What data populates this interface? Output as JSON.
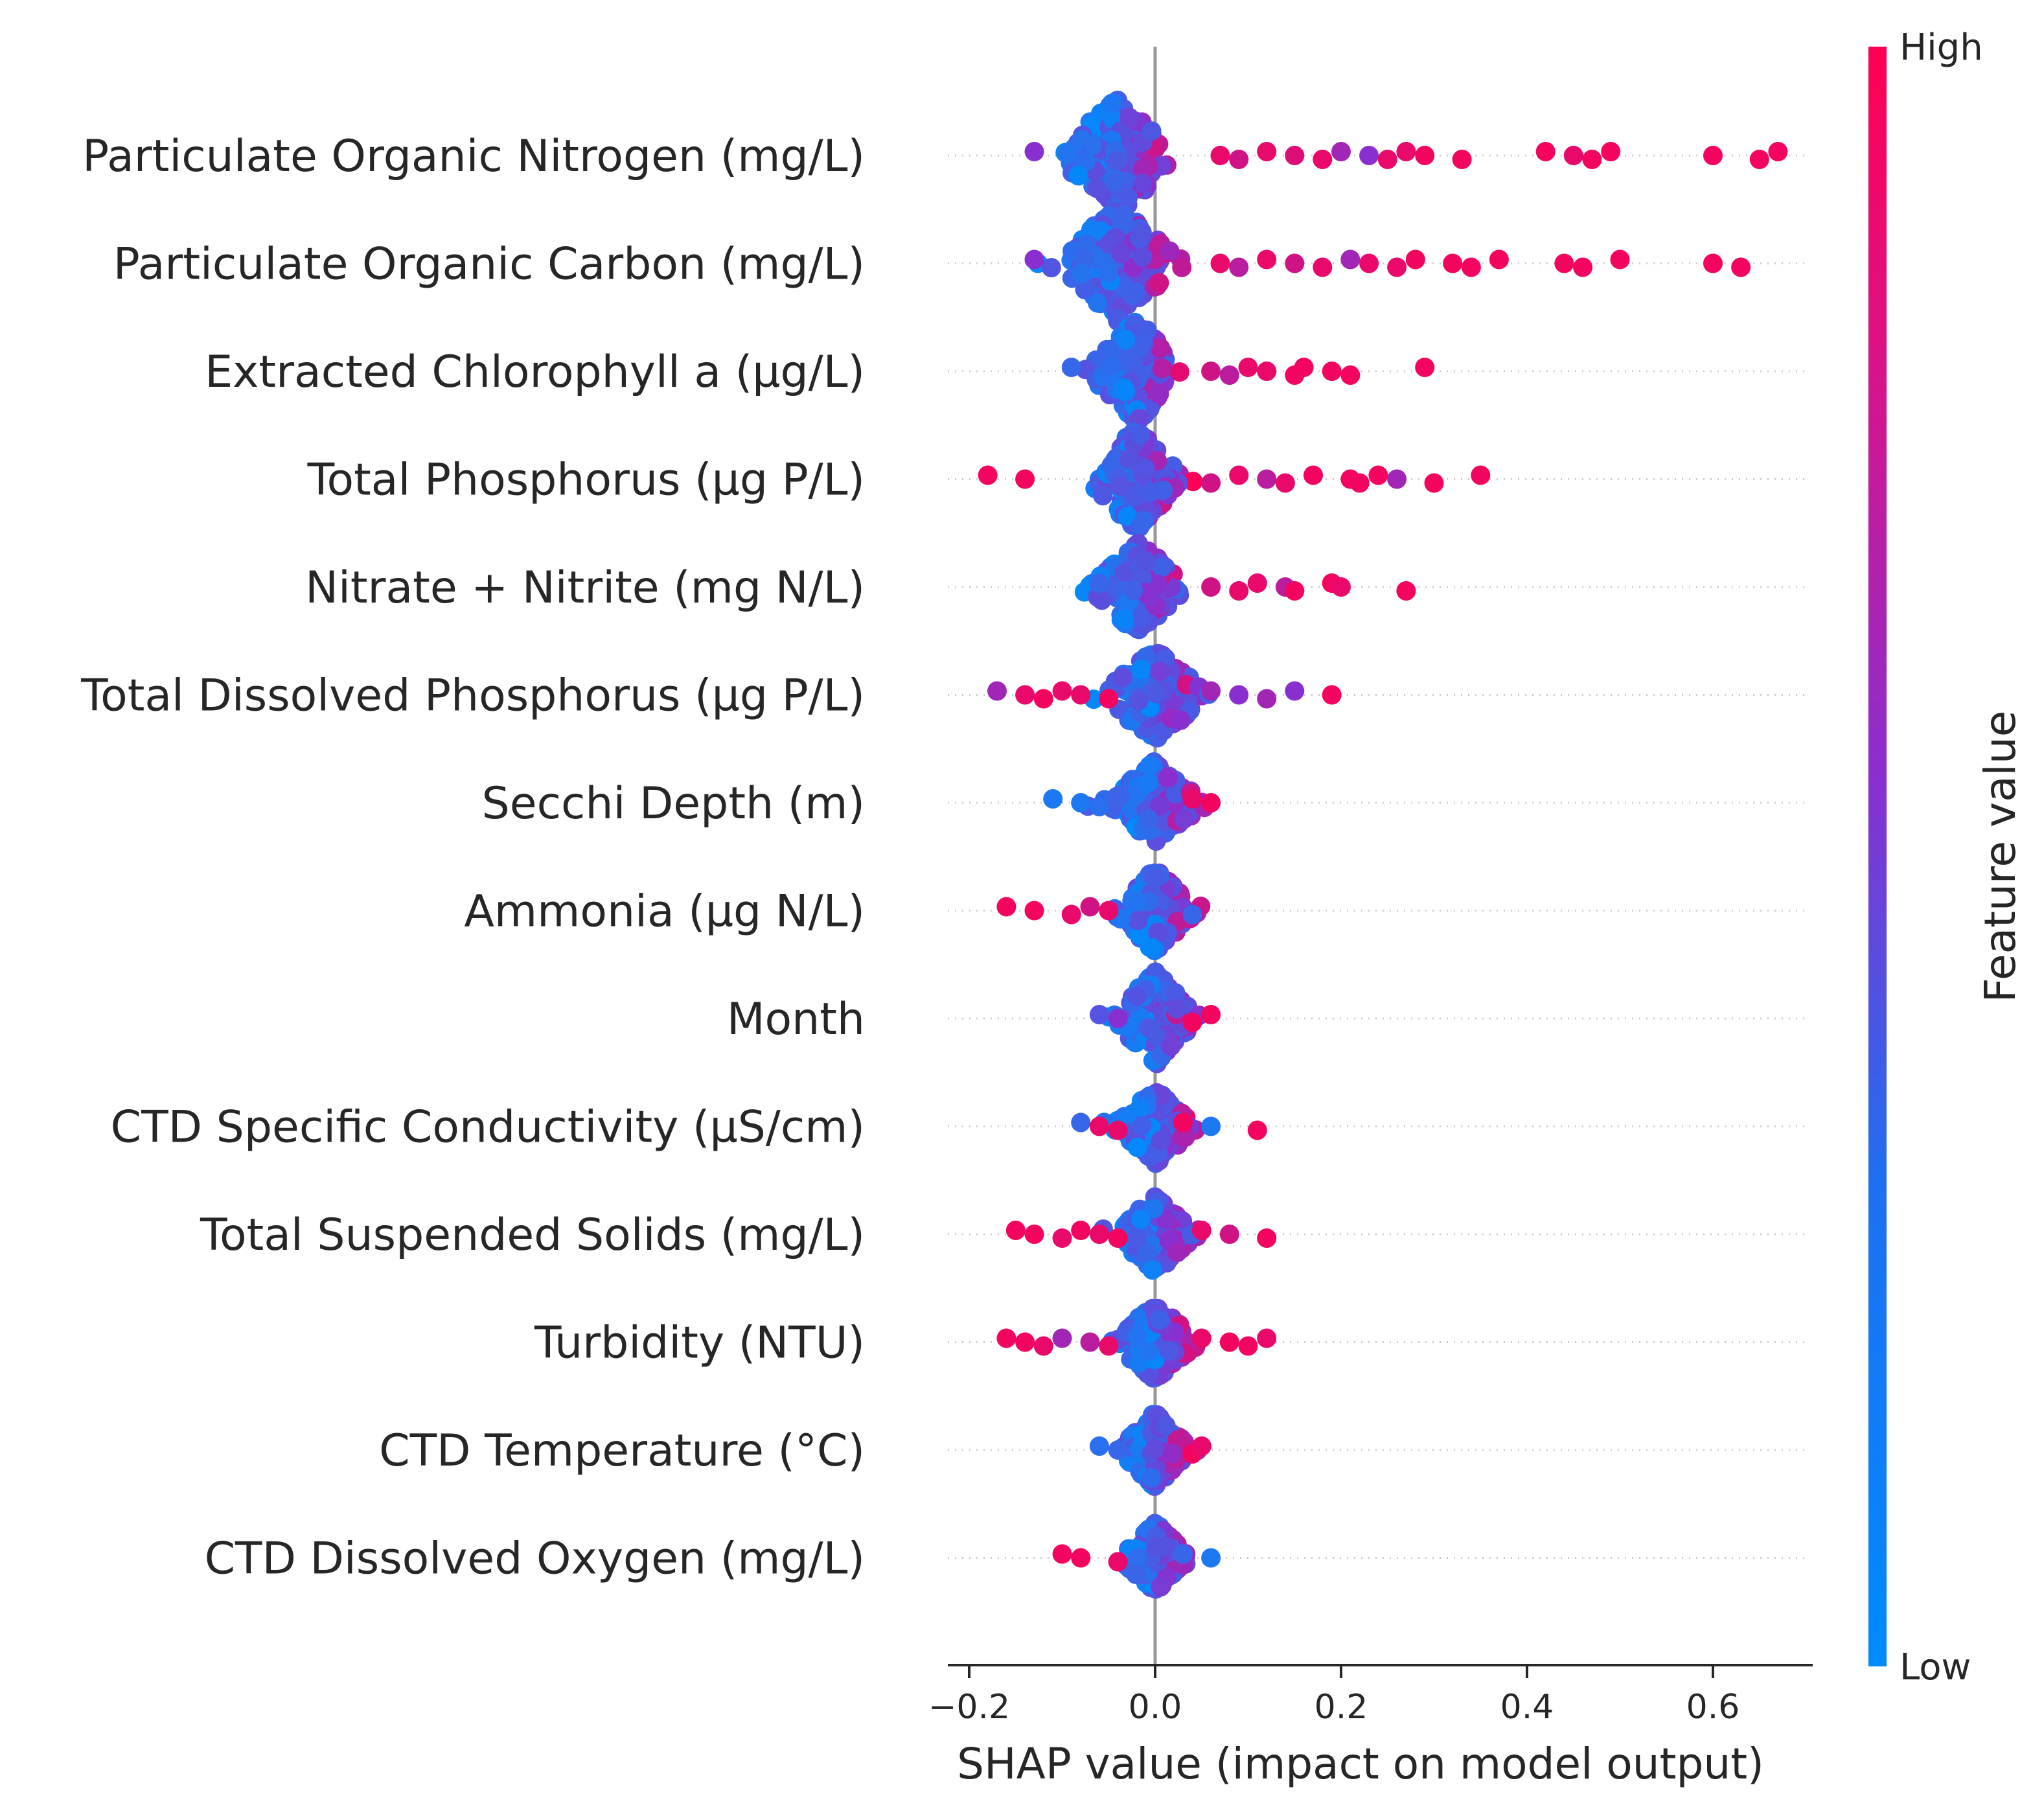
{
  "chart_data": {
    "type": "scatter",
    "subtype": "shap-beeswarm",
    "xlabel": "SHAP value (impact on model output)",
    "xlim": [
      -0.225,
      0.71
    ],
    "x_ticks": [
      -0.2,
      0.0,
      0.2,
      0.4,
      0.6
    ],
    "x_tick_labels": [
      "−0.2",
      "0.0",
      "0.2",
      "0.4",
      "0.6"
    ],
    "colorbar": {
      "label": "Feature value",
      "high_label": "High",
      "low_label": "Low",
      "low_color": "#008bfb",
      "high_color": "#ff0052"
    },
    "features": [
      {
        "name": "Particulate Organic Nitrogen (mg/L)",
        "spread": 0.045,
        "center": -0.04,
        "width": 90,
        "outliers": [
          [
            -0.13,
            0.5
          ],
          [
            0.07,
            0.9
          ],
          [
            0.09,
            0.8
          ],
          [
            0.12,
            0.9
          ],
          [
            0.15,
            0.85
          ],
          [
            0.18,
            0.9
          ],
          [
            0.2,
            0.6
          ],
          [
            0.23,
            0.5
          ],
          [
            0.25,
            0.9
          ],
          [
            0.27,
            0.9
          ],
          [
            0.29,
            0.95
          ],
          [
            0.33,
            0.95
          ],
          [
            0.42,
            0.95
          ],
          [
            0.45,
            0.9
          ],
          [
            0.47,
            0.95
          ],
          [
            0.49,
            0.95
          ],
          [
            0.6,
            0.95
          ],
          [
            0.65,
            0.95
          ],
          [
            0.67,
            0.95
          ]
        ]
      },
      {
        "name": "Particulate Organic Carbon (mg/L)",
        "spread": 0.045,
        "center": -0.04,
        "width": 90,
        "outliers": [
          [
            -0.13,
            0.5
          ],
          [
            0.07,
            0.9
          ],
          [
            0.09,
            0.7
          ],
          [
            0.12,
            0.9
          ],
          [
            0.15,
            0.8
          ],
          [
            0.18,
            0.9
          ],
          [
            0.21,
            0.6
          ],
          [
            0.23,
            0.9
          ],
          [
            0.26,
            0.9
          ],
          [
            0.28,
            0.95
          ],
          [
            0.32,
            0.95
          ],
          [
            0.34,
            0.95
          ],
          [
            0.37,
            0.95
          ],
          [
            0.44,
            0.95
          ],
          [
            0.46,
            0.95
          ],
          [
            0.5,
            0.95
          ],
          [
            0.6,
            0.95
          ],
          [
            0.63,
            0.95
          ]
        ]
      },
      {
        "name": "Extracted Chlorophyll a (µg/L)",
        "spread": 0.035,
        "center": -0.02,
        "width": 80,
        "outliers": [
          [
            -0.09,
            0.2
          ],
          [
            0.06,
            0.8
          ],
          [
            0.08,
            0.7
          ],
          [
            0.1,
            0.9
          ],
          [
            0.12,
            0.9
          ],
          [
            0.15,
            0.95
          ],
          [
            0.16,
            0.95
          ],
          [
            0.19,
            0.95
          ],
          [
            0.21,
            0.95
          ],
          [
            0.29,
            0.95
          ]
        ]
      },
      {
        "name": "Total Phosphorus (µg P/L)",
        "spread": 0.035,
        "center": -0.02,
        "width": 80,
        "outliers": [
          [
            -0.18,
            0.95
          ],
          [
            -0.14,
            0.95
          ],
          [
            0.06,
            0.8
          ],
          [
            0.09,
            0.9
          ],
          [
            0.12,
            0.7
          ],
          [
            0.14,
            0.9
          ],
          [
            0.17,
            0.95
          ],
          [
            0.21,
            0.95
          ],
          [
            0.22,
            0.95
          ],
          [
            0.24,
            0.95
          ],
          [
            0.26,
            0.6
          ],
          [
            0.3,
            0.95
          ],
          [
            0.35,
            0.95
          ]
        ]
      },
      {
        "name": "Nitrate + Nitrite (mg N/L)",
        "spread": 0.035,
        "center": -0.02,
        "width": 75,
        "outliers": [
          [
            -0.06,
            0.2
          ],
          [
            0.06,
            0.8
          ],
          [
            0.09,
            0.9
          ],
          [
            0.11,
            0.9
          ],
          [
            0.14,
            0.7
          ],
          [
            0.15,
            0.95
          ],
          [
            0.19,
            0.95
          ],
          [
            0.2,
            0.9
          ],
          [
            0.27,
            0.95
          ]
        ]
      },
      {
        "name": "Total Dissolved Phosphorus (µg P/L)",
        "spread": 0.04,
        "center": 0.0,
        "width": 70,
        "outliers": [
          [
            -0.17,
            0.6
          ],
          [
            -0.14,
            0.9
          ],
          [
            -0.12,
            0.95
          ],
          [
            -0.1,
            0.9
          ],
          [
            -0.08,
            0.9
          ],
          [
            -0.05,
            0.95
          ],
          [
            0.06,
            0.6
          ],
          [
            0.09,
            0.5
          ],
          [
            0.12,
            0.6
          ],
          [
            0.15,
            0.5
          ],
          [
            0.19,
            0.95
          ]
        ]
      },
      {
        "name": "Secchi Depth (m)",
        "spread": 0.035,
        "center": 0.0,
        "width": 65,
        "outliers": [
          [
            -0.11,
            0.1
          ],
          [
            -0.08,
            0.1
          ],
          [
            -0.06,
            0.15
          ],
          [
            0.04,
            0.9
          ],
          [
            0.06,
            0.95
          ]
        ]
      },
      {
        "name": "Ammonia (µg N/L)",
        "spread": 0.03,
        "center": 0.0,
        "width": 65,
        "outliers": [
          [
            -0.16,
            0.95
          ],
          [
            -0.13,
            0.95
          ],
          [
            -0.09,
            0.9
          ],
          [
            -0.07,
            0.8
          ],
          [
            -0.05,
            0.9
          ],
          [
            0.04,
            0.2
          ]
        ]
      },
      {
        "name": "Month",
        "spread": 0.03,
        "center": 0.0,
        "width": 75,
        "outliers": [
          [
            -0.06,
            0.3
          ],
          [
            -0.04,
            0.5
          ],
          [
            0.04,
            0.95
          ],
          [
            0.06,
            0.95
          ]
        ]
      },
      {
        "name": "CTD Specific Conductivity (µS/cm)",
        "spread": 0.03,
        "center": 0.0,
        "width": 60,
        "outliers": [
          [
            -0.08,
            0.2
          ],
          [
            -0.06,
            0.9
          ],
          [
            -0.04,
            0.9
          ],
          [
            0.03,
            0.95
          ],
          [
            0.06,
            0.1
          ],
          [
            0.11,
            0.95
          ]
        ]
      },
      {
        "name": "Total Suspended Solids (mg/L)",
        "spread": 0.03,
        "center": 0.0,
        "width": 60,
        "outliers": [
          [
            -0.15,
            0.95
          ],
          [
            -0.13,
            0.95
          ],
          [
            -0.1,
            0.9
          ],
          [
            -0.08,
            0.95
          ],
          [
            -0.06,
            0.9
          ],
          [
            -0.04,
            0.95
          ],
          [
            0.05,
            0.9
          ],
          [
            0.08,
            0.8
          ],
          [
            0.12,
            0.95
          ]
        ]
      },
      {
        "name": "Turbidity (NTU)",
        "spread": 0.03,
        "center": 0.0,
        "width": 60,
        "outliers": [
          [
            -0.16,
            0.95
          ],
          [
            -0.14,
            0.95
          ],
          [
            -0.12,
            0.9
          ],
          [
            -0.1,
            0.6
          ],
          [
            -0.07,
            0.7
          ],
          [
            -0.05,
            0.9
          ],
          [
            0.05,
            0.9
          ],
          [
            0.08,
            0.95
          ],
          [
            0.1,
            0.95
          ],
          [
            0.12,
            0.9
          ]
        ]
      },
      {
        "name": "CTD Temperature (°C)",
        "spread": 0.025,
        "center": 0.0,
        "width": 60,
        "outliers": [
          [
            -0.06,
            0.15
          ],
          [
            -0.04,
            0.2
          ],
          [
            0.04,
            0.95
          ],
          [
            0.05,
            0.9
          ]
        ]
      },
      {
        "name": "CTD Dissolved Oxygen (mg/L)",
        "spread": 0.025,
        "center": 0.0,
        "width": 55,
        "outliers": [
          [
            -0.1,
            0.95
          ],
          [
            -0.08,
            0.95
          ],
          [
            -0.04,
            0.9
          ],
          [
            0.03,
            0.2
          ],
          [
            0.06,
            0.1
          ]
        ]
      }
    ]
  }
}
